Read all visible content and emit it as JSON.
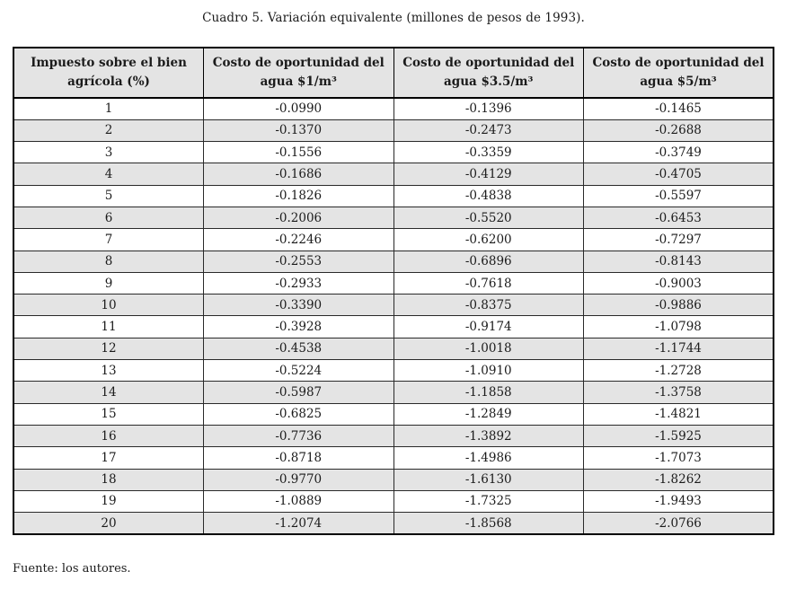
{
  "title": "Cuadro 5. Variación equivalente (millones de pesos de 1993).",
  "source_note": "Fuente: los autores.",
  "colors": {
    "header_and_shaded_row_bg": "#e4e4e4",
    "border": "#000000",
    "text": "#1b1b1b"
  },
  "table": {
    "headers": [
      {
        "lines": [
          "Impuesto sobre el bien",
          "agrícola (%)"
        ]
      },
      {
        "lines": [
          "Costo de oportunidad del",
          "agua $1/m³"
        ]
      },
      {
        "lines": [
          "Costo de oportunidad del",
          "agua $3.5/m³"
        ]
      },
      {
        "lines": [
          "Costo de oportunidad del",
          "agua $5/m³"
        ]
      }
    ],
    "rows": [
      [
        "1",
        "-0.0990",
        "-0.1396",
        "-0.1465"
      ],
      [
        "2",
        "-0.1370",
        "-0.2473",
        "-0.2688"
      ],
      [
        "3",
        "-0.1556",
        "-0.3359",
        "-0.3749"
      ],
      [
        "4",
        "-0.1686",
        "-0.4129",
        "-0.4705"
      ],
      [
        "5",
        "-0.1826",
        "-0.4838",
        "-0.5597"
      ],
      [
        "6",
        "-0.2006",
        "-0.5520",
        "-0.6453"
      ],
      [
        "7",
        "-0.2246",
        "-0.6200",
        "-0.7297"
      ],
      [
        "8",
        "-0.2553",
        "-0.6896",
        "-0.8143"
      ],
      [
        "9",
        "-0.2933",
        "-0.7618",
        "-0.9003"
      ],
      [
        "10",
        "-0.3390",
        "-0.8375",
        "-0.9886"
      ],
      [
        "11",
        "-0.3928",
        "-0.9174",
        "-1.0798"
      ],
      [
        "12",
        "-0.4538",
        "-1.0018",
        "-1.1744"
      ],
      [
        "13",
        "-0.5224",
        "-1.0910",
        "-1.2728"
      ],
      [
        "14",
        "-0.5987",
        "-1.1858",
        "-1.3758"
      ],
      [
        "15",
        "-0.6825",
        "-1.2849",
        "-1.4821"
      ],
      [
        "16",
        "-0.7736",
        "-1.3892",
        "-1.5925"
      ],
      [
        "17",
        "-0.8718",
        "-1.4986",
        "-1.7073"
      ],
      [
        "18",
        "-0.9770",
        "-1.6130",
        "-1.8262"
      ],
      [
        "19",
        "-1.0889",
        "-1.7325",
        "-1.9493"
      ],
      [
        "20",
        "-1.2074",
        "-1.8568",
        "-2.0766"
      ]
    ]
  }
}
